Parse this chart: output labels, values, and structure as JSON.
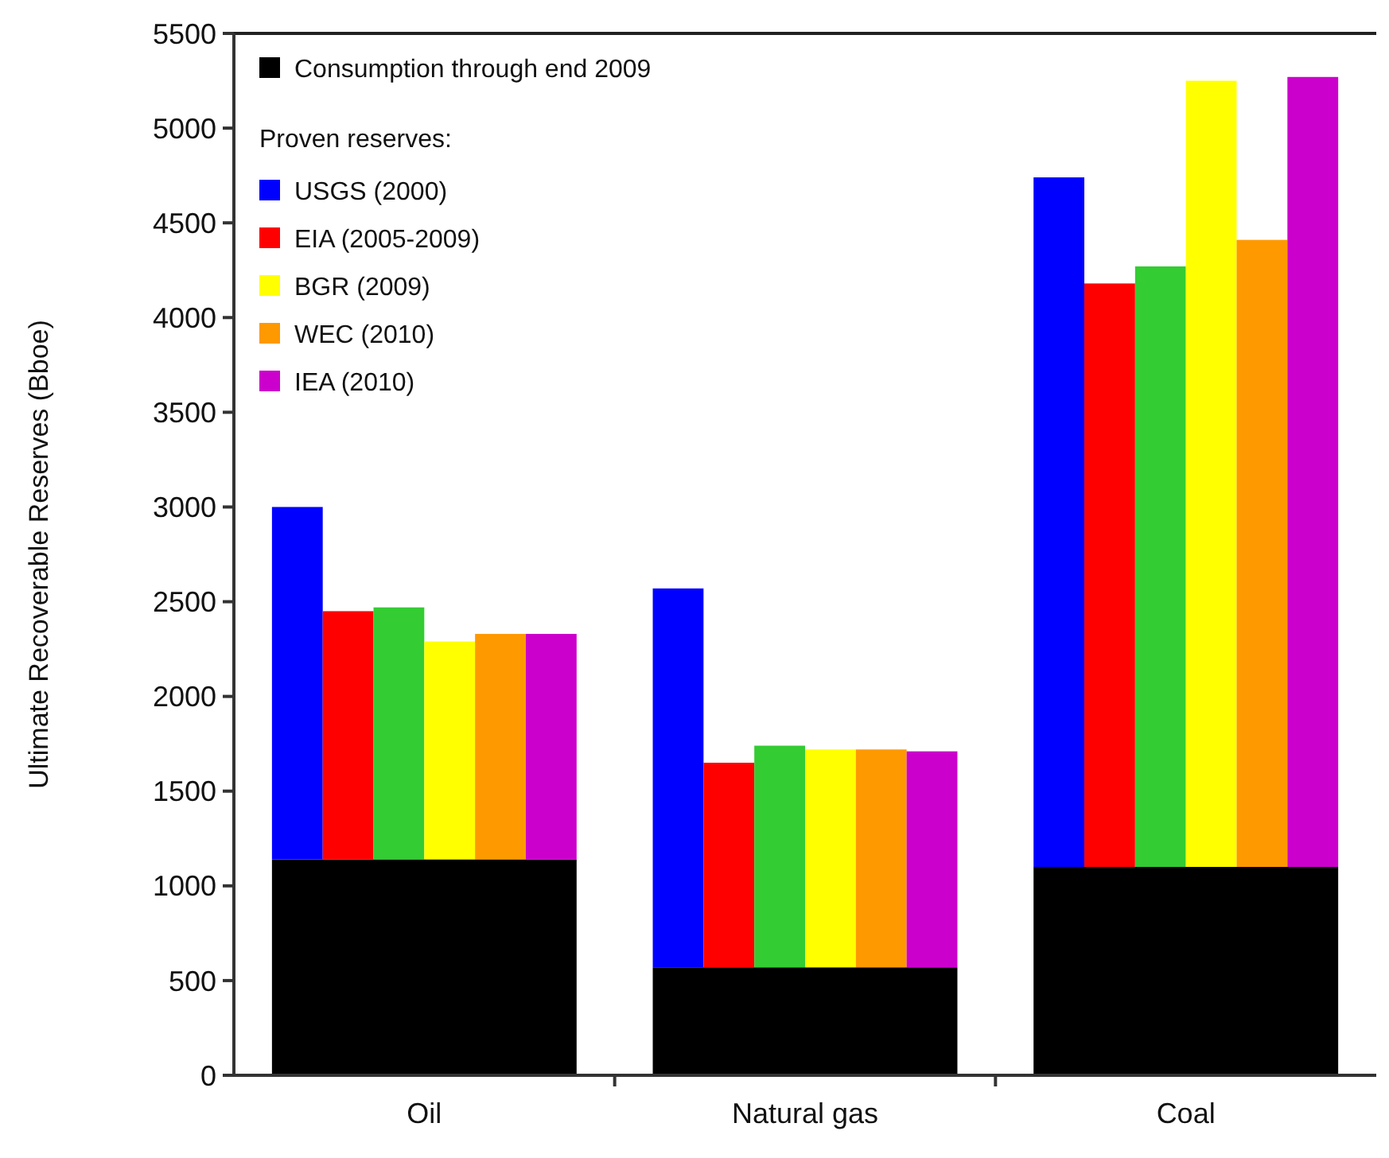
{
  "chart_data": {
    "type": "bar",
    "ylabel": "Ultimate Recoverable Reserves (Bboe)",
    "legend_title": "Proven reserves:",
    "categories": [
      "Oil",
      "Natural gas",
      "Coal"
    ],
    "ylim": [
      0,
      5500
    ],
    "yticks": [
      0,
      500,
      1000,
      1500,
      2000,
      2500,
      3000,
      3500,
      4000,
      4500,
      5000,
      5500
    ],
    "grid": false,
    "legend": "top left",
    "series": [
      {
        "name": "Consumption through end 2009",
        "color": "#000000",
        "values": [
          1140,
          570,
          1100
        ]
      },
      {
        "name": "USGS (2000)",
        "color": "#0000ff",
        "base": [
          1140,
          570,
          1100
        ],
        "values": [
          1860,
          2000,
          3640
        ]
      },
      {
        "name": "EIA (2005-2009)",
        "color": "#ff0000",
        "base": [
          1140,
          570,
          1100
        ],
        "values": [
          1310,
          1080,
          3080
        ]
      },
      {
        "color": "#33cc33",
        "base": [
          1140,
          570,
          1100
        ],
        "values": [
          1330,
          1170,
          3170
        ]
      },
      {
        "name": "BGR (2009)",
        "color": "#ffff00",
        "base": [
          1140,
          570,
          1100
        ],
        "values": [
          1150,
          1150,
          4150
        ]
      },
      {
        "name": "WEC (2010)",
        "color": "#ff9900",
        "base": [
          1140,
          570,
          1100
        ],
        "values": [
          1190,
          1150,
          3310
        ]
      },
      {
        "name": "IEA (2010)",
        "color": "#cc00cc",
        "base": [
          1140,
          570,
          1100
        ],
        "values": [
          1190,
          1140,
          4170
        ]
      }
    ]
  }
}
